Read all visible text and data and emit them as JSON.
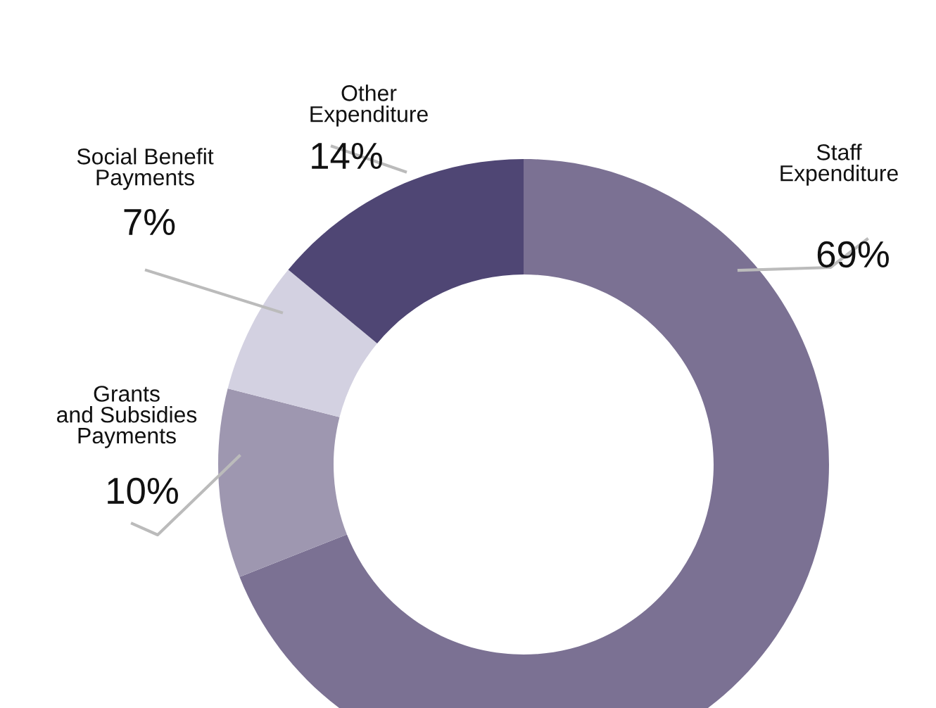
{
  "chart_data": {
    "type": "donut",
    "categories": [
      "Staff\nExpenditure",
      "Grants\nand Subsidies\nPayments",
      "Social Benefit\nPayments",
      "Other\nExpenditure"
    ],
    "values": [
      69,
      10,
      7,
      14
    ],
    "value_labels": [
      "69%",
      "10%",
      "7%",
      "14%"
    ],
    "colors": [
      "#7b7193",
      "#9e97b0",
      "#d3d1e1",
      "#4f4674"
    ]
  }
}
